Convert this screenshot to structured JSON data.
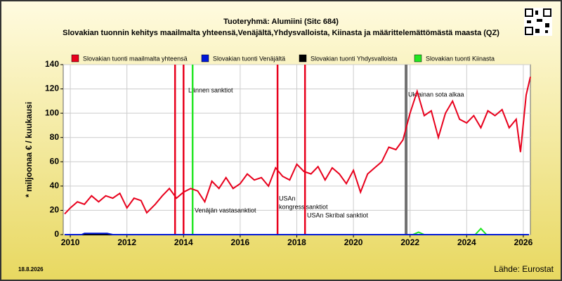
{
  "chart_data": {
    "type": "line",
    "title": "Tuoteryhmä: Alumiini (Sitc 684)",
    "subtitle": "Slovakian tuonnin kehitys maailmalta yhteensä,Venäjältä,Yhdysvalloista, Kiinasta ja määrittelemättömästä maasta (QZ)",
    "y_label": "* miljoonaa € / kuukausi",
    "date": "18.8.2026",
    "source": "Lähde: Eurostat",
    "xlim": [
      2009.75,
      2026.25
    ],
    "xticks": [
      2010,
      2012,
      2014,
      2016,
      2018,
      2020,
      2022,
      2024,
      2026
    ],
    "ylim": [
      0,
      140
    ],
    "yticks": [
      0,
      20,
      40,
      60,
      80,
      100,
      120,
      140
    ],
    "series": [
      {
        "name": "Slovakian tuonti maailmalta yhteensä",
        "color": "#e8001c",
        "x": [
          2009.8,
          2010.0,
          2010.25,
          2010.5,
          2010.75,
          2011.0,
          2011.25,
          2011.5,
          2011.75,
          2012.0,
          2012.25,
          2012.5,
          2012.7,
          2013.0,
          2013.25,
          2013.5,
          2013.75,
          2014.0,
          2014.25,
          2014.5,
          2014.75,
          2015.0,
          2015.25,
          2015.5,
          2015.75,
          2016.0,
          2016.25,
          2016.5,
          2016.75,
          2017.0,
          2017.25,
          2017.5,
          2017.75,
          2018.0,
          2018.25,
          2018.5,
          2018.75,
          2019.0,
          2019.25,
          2019.5,
          2019.75,
          2020.0,
          2020.25,
          2020.5,
          2020.75,
          2021.0,
          2021.25,
          2021.5,
          2021.75,
          2022.0,
          2022.25,
          2022.5,
          2022.75,
          2023.0,
          2023.25,
          2023.5,
          2023.75,
          2024.0,
          2024.25,
          2024.5,
          2024.75,
          2025.0,
          2025.25,
          2025.5,
          2025.75,
          2025.9,
          2026.1,
          2026.25
        ],
        "values": [
          17,
          22,
          27,
          25,
          32,
          27,
          32,
          30,
          34,
          22,
          30,
          28,
          18,
          25,
          32,
          38,
          30,
          35,
          38,
          36,
          27,
          44,
          38,
          47,
          38,
          42,
          50,
          45,
          47,
          40,
          55,
          48,
          45,
          58,
          52,
          50,
          56,
          45,
          55,
          50,
          42,
          53,
          35,
          50,
          55,
          60,
          72,
          70,
          78,
          100,
          118,
          98,
          102,
          80,
          100,
          110,
          95,
          92,
          98,
          88,
          102,
          98,
          103,
          88,
          95,
          68,
          115,
          130
        ]
      },
      {
        "name": "Slovakian tuonti Venäjältä",
        "color": "#0018d8",
        "x": [
          2009.8,
          2010.4,
          2010.5,
          2011.3,
          2011.5,
          2026.2
        ],
        "values": [
          0,
          0,
          1,
          1,
          0,
          0
        ]
      },
      {
        "name": "Slovakian tuonti Yhdysvalloista",
        "color": "#000000",
        "x": [
          2009.8,
          2026.2
        ],
        "values": [
          0,
          0
        ]
      },
      {
        "name": "Slovakian tuonti Kiinasta",
        "color": "#22e622",
        "x": [
          2009.8,
          2022.1,
          2022.3,
          2022.5,
          2024.3,
          2024.5,
          2024.7,
          2026.2
        ],
        "values": [
          0,
          0,
          2,
          0,
          0,
          5,
          0,
          0
        ]
      }
    ],
    "events": [
      {
        "x": 2013.7,
        "color": "#e8001c"
      },
      {
        "x": 2014.0,
        "color": "#e8001c",
        "label": [
          "Lännen sanktiot"
        ]
      },
      {
        "x": 2014.32,
        "color": "#22e622",
        "label": [
          "Venäjän vastasanktiot"
        ]
      },
      {
        "x": 2017.32,
        "color": "#e8001c",
        "label": [
          "USAn",
          "kongressisanktiot"
        ]
      },
      {
        "x": 2018.29,
        "color": "#e8001c",
        "label": [
          "USAn Skribal sanktiot"
        ]
      },
      {
        "x": 2021.86,
        "color": "#707070",
        "label": [
          "Ukrainan sota alkaa"
        ]
      }
    ]
  }
}
